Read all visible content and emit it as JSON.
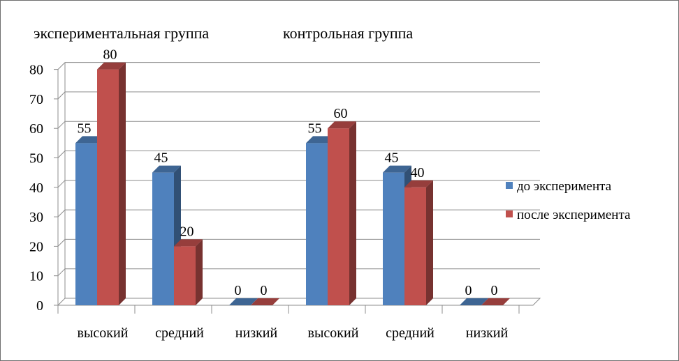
{
  "chart_data": {
    "type": "bar",
    "group_titles": [
      "экспериментальная группа",
      "контрольная группа"
    ],
    "categories": [
      "высокий",
      "средний",
      "низкий",
      "высокий",
      "средний",
      "низкий"
    ],
    "series": [
      {
        "name": "до эксперимента",
        "values": [
          55,
          45,
          0,
          55,
          45,
          0
        ],
        "color": "#4f81bd"
      },
      {
        "name": "после эксперимента",
        "values": [
          80,
          20,
          0,
          60,
          40,
          0
        ],
        "color": "#c0504d"
      }
    ],
    "ylim": [
      0,
      80
    ],
    "yticks": [
      0,
      10,
      20,
      30,
      40,
      50,
      60,
      70,
      80
    ],
    "grid": true,
    "legend_position": "right",
    "three_d": true
  }
}
